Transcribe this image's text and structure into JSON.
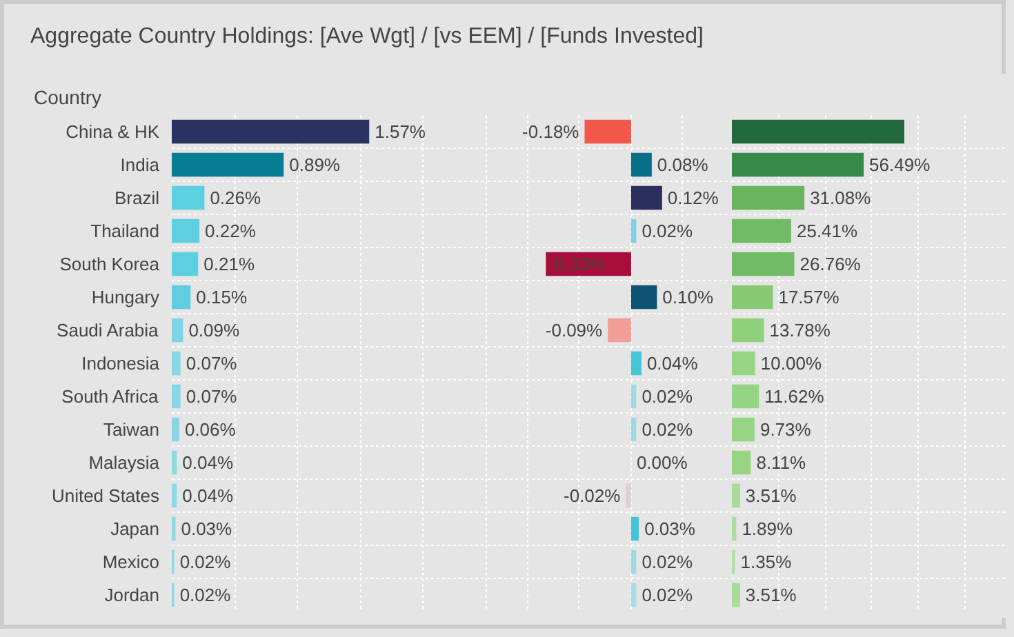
{
  "chart_data": [
    {
      "type": "bar",
      "orientation": "horizontal",
      "title": "Aggregate Country Holdings:  [Ave Wgt] / [vs EEM] / [Funds Invested]",
      "ylabel": "Country",
      "categories": [
        "China & HK",
        "India",
        "Brazil",
        "Thailand",
        "South Korea",
        "Hungary",
        "Saudi Arabia",
        "Indonesia",
        "South Africa",
        "Taiwan",
        "Malaysia",
        "United States",
        "Japan",
        "Mexico",
        "Jordan"
      ],
      "values": [
        1.57,
        0.89,
        0.26,
        0.22,
        0.21,
        0.15,
        0.09,
        0.07,
        0.07,
        0.06,
        0.04,
        0.04,
        0.03,
        0.02,
        0.02
      ],
      "value_labels": [
        "1.57%",
        "0.89%",
        "0.26%",
        "0.22%",
        "0.21%",
        "0.15%",
        "0.09%",
        "0.07%",
        "0.07%",
        "0.06%",
        "0.04%",
        "0.04%",
        "0.03%",
        "0.02%",
        "0.02%"
      ],
      "colors": [
        "#2b3160",
        "#077d93",
        "#5ccfe0",
        "#5ccfe0",
        "#5ccfe0",
        "#61cde0",
        "#7dd5e3",
        "#89d6e4",
        "#89d6e4",
        "#89d6e4",
        "#8fd8e5",
        "#8fd8e5",
        "#8fd8e5",
        "#8fd8e5",
        "#8fd8e5"
      ],
      "grid": true,
      "tick_labels": "y"
    },
    {
      "type": "bar",
      "orientation": "horizontal",
      "categories": [
        null,
        null,
        null,
        null,
        null,
        null,
        null,
        null,
        null,
        null,
        null,
        null,
        null,
        null,
        null
      ],
      "values": [
        -0.18,
        0.08,
        0.12,
        0.02,
        -0.33,
        0.1,
        -0.09,
        0.04,
        0.02,
        0.02,
        0.0,
        -0.02,
        0.03,
        0.02,
        0.02
      ],
      "value_labels": [
        "-0.18%",
        "0.08%",
        "0.12%",
        "0.02%",
        "-0.33%",
        "0.10%",
        "-0.09%",
        "0.04%",
        "0.02%",
        "0.02%",
        "0.00%",
        "-0.02%",
        "0.03%",
        "0.02%",
        "0.02%"
      ],
      "colors": [
        "#f2574a",
        "#086f8a",
        "#2b2f5e",
        "#7dd3e3",
        "#a80d3b",
        "#0f5373",
        "#f29d96",
        "#45c4d8",
        "#9ed9e5",
        "#9ed9e5",
        "#b5dfe8",
        "#dccfd6",
        "#45c4d8",
        "#9ed9e5",
        "#a9dce6"
      ],
      "grid": true,
      "tick_labels": false
    },
    {
      "type": "bar",
      "orientation": "horizontal",
      "categories": [
        null,
        null,
        null,
        null,
        null,
        null,
        null,
        null,
        null,
        null,
        null,
        null,
        null,
        null,
        null
      ],
      "values": [
        73.9,
        56.49,
        31.08,
        25.41,
        26.76,
        17.57,
        13.78,
        10.0,
        11.62,
        9.73,
        8.11,
        3.51,
        1.89,
        1.35,
        3.51
      ],
      "value_labels": [
        null,
        "56.49%",
        "31.08%",
        "25.41%",
        "26.76%",
        "17.57%",
        "13.78%",
        "10.00%",
        "11.62%",
        "9.73%",
        "8.11%",
        "3.51%",
        "1.89%",
        "1.35%",
        "3.51%"
      ],
      "colors": [
        "#226a3e",
        "#37894a",
        "#6ab35f",
        "#72bb66",
        "#72bb66",
        "#87c975",
        "#90d07c",
        "#97d585",
        "#94d483",
        "#97d585",
        "#97d585",
        "#a8dc98",
        "#abdd9c",
        "#b3e0a6",
        "#a8dc98"
      ],
      "grid": true,
      "tick_labels": false
    }
  ]
}
